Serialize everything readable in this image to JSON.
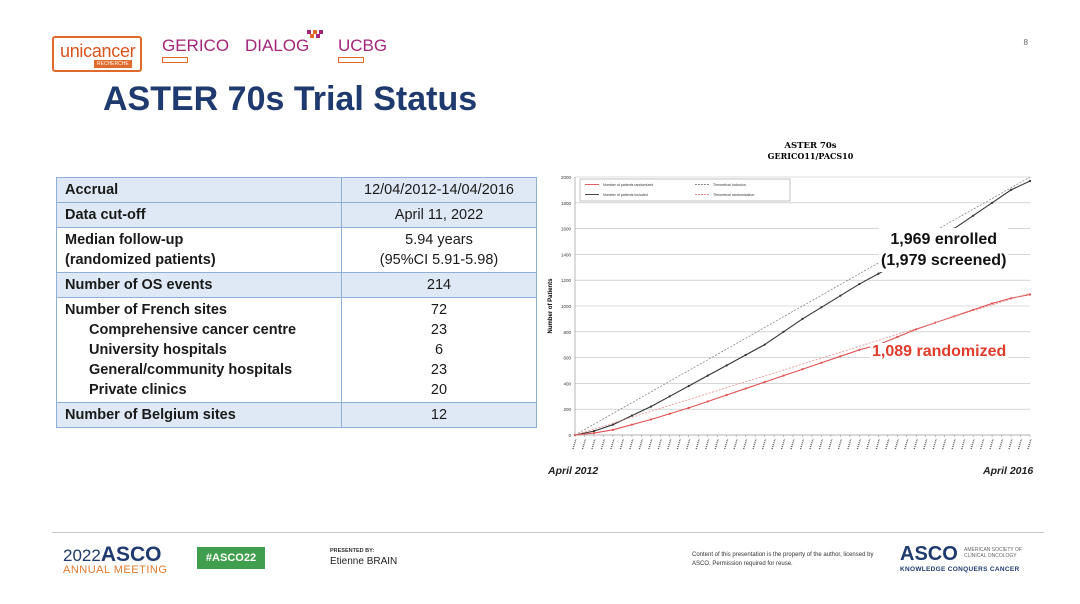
{
  "header": {
    "logo_unicancer": "unicancer",
    "logo_unicancer_sub": "RECHERCHE",
    "logo_gerico": "GERICO",
    "logo_dialog": "DIALOG",
    "logo_ucbg": "UCBG",
    "page_number": "8"
  },
  "title": "ASTER 70s Trial Status",
  "table": {
    "rows": [
      {
        "label": "Accrual",
        "value": "12/04/2012-14/04/2016"
      },
      {
        "label": "Data cut-off",
        "value": "April 11, 2022"
      },
      {
        "label_line1": "Median follow-up",
        "label_line2": "(randomized patients)",
        "value_line1": "5.94 years",
        "value_line2": "(95%CI 5.91-5.98)"
      },
      {
        "label": "Number of OS events",
        "value": "214"
      },
      {
        "label": "Number of French sites",
        "value": "72",
        "sub": [
          {
            "label": "Comprehensive cancer centre",
            "value": "23"
          },
          {
            "label": "University hospitals",
            "value": "6"
          },
          {
            "label": "General/community hospitals",
            "value": "23"
          },
          {
            "label": "Private clinics",
            "value": "20"
          }
        ]
      },
      {
        "label": "Number of Belgium sites",
        "value": "12"
      }
    ]
  },
  "chart_data": {
    "type": "line",
    "title": "ASTER 70s",
    "subtitle": "GERICO11/PACS10",
    "ylabel": "Number of Patients",
    "ylim": [
      0,
      2000
    ],
    "yticks": [
      0,
      200,
      400,
      600,
      800,
      1000,
      1200,
      1400,
      1600,
      1800,
      2000
    ],
    "legend": [
      "Number of patients randomized",
      "Theoretical inclusion",
      "Number of patients included",
      "Theoretical randomization"
    ],
    "legend_position": "top-left",
    "grid": true,
    "x_start_label": "April 2012",
    "x_end_label": "April 2016",
    "x": [
      0,
      2,
      4,
      6,
      8,
      10,
      12,
      14,
      16,
      18,
      20,
      22,
      24,
      26,
      28,
      30,
      32,
      34,
      36,
      38,
      40,
      42,
      44,
      46,
      48
    ],
    "series": [
      {
        "name": "Number of patients included",
        "color": "#333333",
        "values": [
          0,
          30,
          80,
          150,
          220,
          300,
          380,
          460,
          540,
          620,
          700,
          800,
          900,
          990,
          1080,
          1170,
          1250,
          1330,
          1420,
          1510,
          1600,
          1700,
          1800,
          1900,
          1969
        ]
      },
      {
        "name": "Number of patients randomized",
        "color": "#e05050",
        "values": [
          0,
          15,
          40,
          80,
          120,
          165,
          210,
          260,
          310,
          360,
          410,
          460,
          510,
          560,
          610,
          660,
          700,
          760,
          820,
          870,
          920,
          970,
          1020,
          1060,
          1089
        ]
      },
      {
        "name": "Theoretical inclusion",
        "color": "#888888",
        "dashed": true,
        "values": [
          0,
          83,
          167,
          250,
          333,
          417,
          500,
          583,
          667,
          750,
          833,
          917,
          1000,
          1083,
          1167,
          1250,
          1333,
          1417,
          1500,
          1583,
          1667,
          1750,
          1833,
          1917,
          2000
        ]
      },
      {
        "name": "Theoretical randomization",
        "color": "#e89090",
        "dashed": true,
        "values": [
          0,
          46,
          92,
          138,
          183,
          229,
          275,
          321,
          367,
          413,
          458,
          504,
          550,
          596,
          642,
          688,
          733,
          779,
          825,
          871,
          917,
          963,
          1008,
          1054,
          1100
        ]
      }
    ],
    "annotations": {
      "enrolled_line1": "1,969 enrolled",
      "enrolled_line2": "(1,979 screened)",
      "randomized": "1,089 randomized"
    }
  },
  "footer": {
    "year": "2022",
    "asco": "ASCO",
    "meeting": "ANNUAL MEETING",
    "hashtag": "#ASCO22",
    "presented_by_label": "PRESENTED BY:",
    "presenter": "Etienne BRAIN",
    "disclaimer": "Content of this presentation is the property of the author, licensed by ASCO. Permission required for reuse.",
    "asco_right": "ASCO",
    "society": "AMERICAN SOCIETY OF CLINICAL ONCOLOGY",
    "tagline": "KNOWLEDGE CONQUERS CANCER"
  }
}
